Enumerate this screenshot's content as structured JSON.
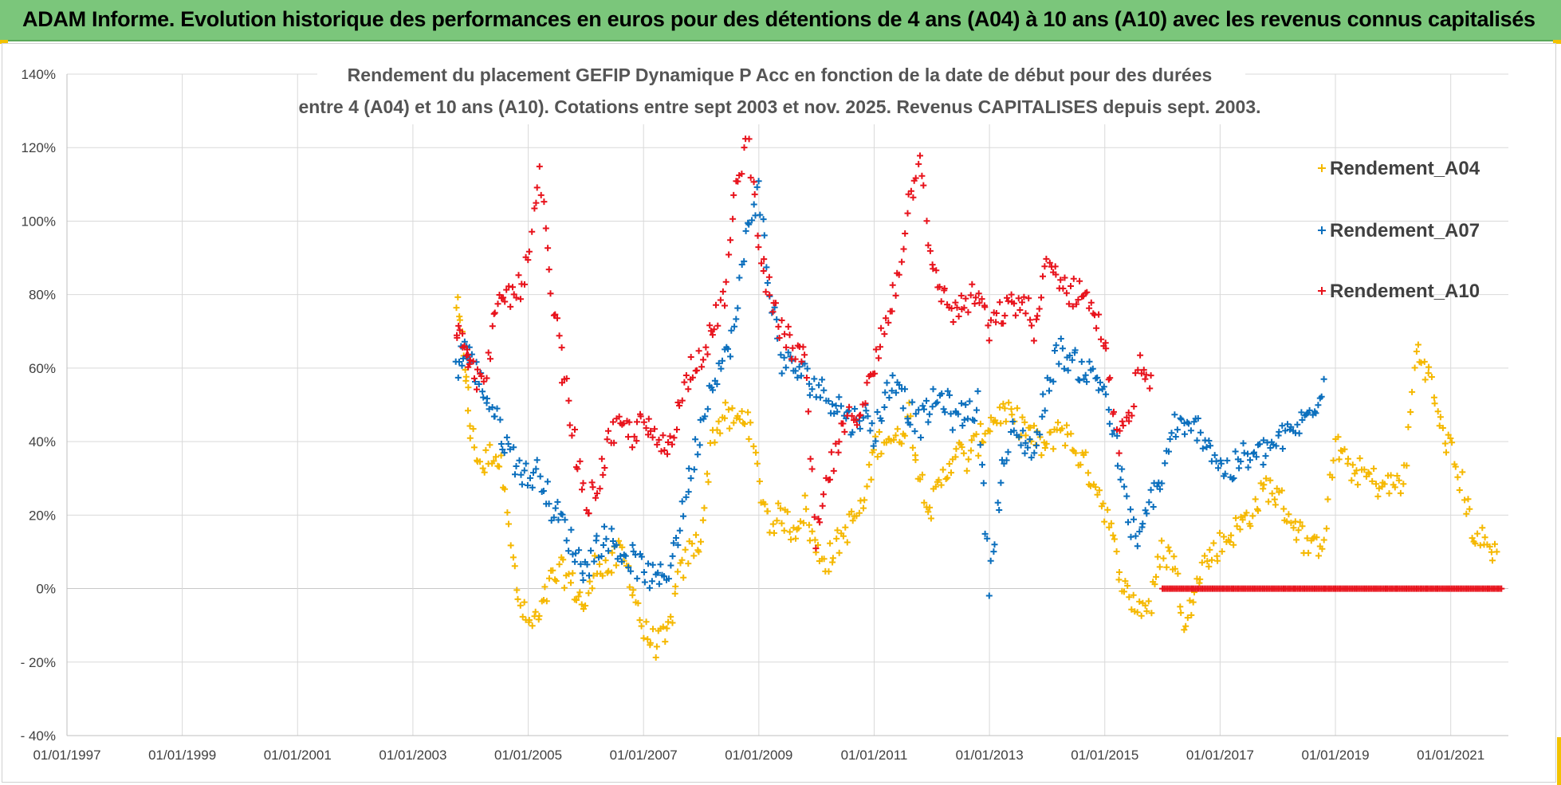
{
  "header": {
    "title": "ADAM Informe. Evolution historique des performances en euros pour des détentions de 4 ans (A04) à 10 ans (A10) avec les revenus connus capitalisés"
  },
  "colors": {
    "banner": "#7bc67b",
    "A04": "#f5b800",
    "A07": "#0b6fbd",
    "A10": "#e8131c",
    "grid": "#d9d9d9"
  },
  "chart_data": {
    "type": "scatter",
    "title_lines": [
      "Rendement du placement GEFIP Dynamique P Acc en fonction de la date de début pour des durées",
      "entre 4 (A04) et 10 ans (A10).  Cotations entre sept 2003 et nov. 2025. Revenus CAPITALISES depuis sept. 2003."
    ],
    "xlabel": "",
    "ylabel": "",
    "x_range": [
      "1997-01-01",
      "2022-01-01"
    ],
    "x_ticks": [
      "01/01/1997",
      "01/01/1999",
      "01/01/2001",
      "01/01/2003",
      "01/01/2005",
      "01/01/2007",
      "01/01/2009",
      "01/01/2011",
      "01/01/2013",
      "01/01/2015",
      "01/01/2017",
      "01/01/2019",
      "01/01/2021"
    ],
    "x_tick_years": [
      1997,
      1999,
      2001,
      2003,
      2005,
      2007,
      2009,
      2011,
      2013,
      2015,
      2017,
      2019,
      2021
    ],
    "ylim": [
      -40,
      140
    ],
    "y_ticks": [
      140,
      120,
      100,
      80,
      60,
      40,
      20,
      0,
      -20,
      -40
    ],
    "y_tick_labels": [
      "140%",
      "120%",
      "100%",
      "80%",
      "60%",
      "40%",
      "20%",
      "0%",
      "- 20%",
      "- 40%"
    ],
    "grid": true,
    "marker": "+",
    "legend_position": "top-right",
    "series": [
      {
        "name": "Rendement_A04",
        "color": "#f5b800",
        "x": [
          2003.75,
          2003.9,
          2004.0,
          2004.2,
          2004.4,
          2004.6,
          2004.8,
          2005.0,
          2005.2,
          2005.4,
          2005.6,
          2005.8,
          2006.0,
          2006.2,
          2006.4,
          2006.6,
          2006.8,
          2007.0,
          2007.2,
          2007.4,
          2007.6,
          2007.8,
          2008.0,
          2008.2,
          2008.4,
          2008.6,
          2008.8,
          2009.0,
          2009.2,
          2009.4,
          2009.6,
          2009.8,
          2010.0,
          2010.2,
          2010.4,
          2010.6,
          2010.8,
          2011.0,
          2011.2,
          2011.4,
          2011.6,
          2011.8,
          2012.0,
          2012.2,
          2012.4,
          2012.6,
          2012.8,
          2013.0,
          2013.2,
          2013.4,
          2013.6,
          2013.8,
          2014.0,
          2014.2,
          2014.4,
          2014.6,
          2014.8,
          2015.0,
          2015.2,
          2015.4,
          2015.6,
          2015.8,
          2016.0,
          2016.2,
          2016.4,
          2016.6,
          2016.8,
          2017.0,
          2017.2,
          2017.4,
          2017.6,
          2017.8,
          2018.0,
          2018.2,
          2018.4,
          2018.6,
          2018.8,
          2019.0,
          2019.2,
          2019.4,
          2019.6,
          2019.8,
          2020.0,
          2020.2,
          2020.4,
          2020.6,
          2020.8,
          2021.0,
          2021.2,
          2021.4,
          2021.6,
          2021.8
        ],
        "values": [
          78,
          62,
          42,
          33,
          38,
          30,
          -2,
          -10,
          -8,
          2,
          5,
          0,
          -5,
          8,
          5,
          10,
          2,
          -12,
          -15,
          -14,
          2,
          10,
          14,
          42,
          47,
          45,
          48,
          28,
          18,
          20,
          16,
          22,
          10,
          8,
          13,
          18,
          22,
          38,
          42,
          40,
          48,
          30,
          22,
          30,
          38,
          35,
          40,
          45,
          48,
          46,
          44,
          40,
          38,
          45,
          40,
          35,
          30,
          22,
          8,
          -2,
          -5,
          -4,
          10,
          8,
          -12,
          5,
          8,
          12,
          15,
          18,
          22,
          28,
          25,
          20,
          15,
          10,
          15,
          40,
          33,
          32,
          30,
          28,
          28,
          30,
          65,
          60,
          45,
          38,
          28,
          15,
          12,
          10
        ]
      },
      {
        "name": "Rendement_A07",
        "color": "#0b6fbd",
        "x": [
          2003.75,
          2003.9,
          2004.0,
          2004.2,
          2004.4,
          2004.6,
          2004.8,
          2005.0,
          2005.2,
          2005.4,
          2005.6,
          2005.8,
          2006.0,
          2006.2,
          2006.4,
          2006.6,
          2006.8,
          2007.0,
          2007.2,
          2007.4,
          2007.6,
          2007.8,
          2008.0,
          2008.2,
          2008.4,
          2008.6,
          2008.8,
          2009.0,
          2009.2,
          2009.4,
          2009.6,
          2009.8,
          2010.0,
          2010.2,
          2010.4,
          2010.6,
          2010.8,
          2011.0,
          2011.2,
          2011.4,
          2011.6,
          2011.8,
          2012.0,
          2012.2,
          2012.4,
          2012.6,
          2012.8,
          2013.0,
          2013.2,
          2013.4,
          2013.6,
          2013.8,
          2014.0,
          2014.2,
          2014.4,
          2014.6,
          2014.8,
          2015.0,
          2015.2,
          2015.4,
          2015.6,
          2015.8,
          2016.0,
          2016.2,
          2016.4,
          2016.6,
          2016.8,
          2017.0,
          2017.2,
          2017.4,
          2017.6,
          2017.8,
          2018.0,
          2018.2,
          2018.4,
          2018.6,
          2018.8
        ],
        "values": [
          60,
          66,
          62,
          55,
          48,
          40,
          34,
          30,
          32,
          22,
          18,
          10,
          5,
          12,
          14,
          10,
          8,
          5,
          2,
          4,
          15,
          30,
          45,
          58,
          62,
          72,
          100,
          108,
          80,
          62,
          60,
          58,
          55,
          52,
          50,
          45,
          48,
          42,
          52,
          58,
          48,
          45,
          50,
          52,
          46,
          48,
          50,
          2,
          30,
          42,
          40,
          38,
          55,
          65,
          62,
          60,
          58,
          55,
          38,
          20,
          12,
          25,
          30,
          45,
          42,
          44,
          40,
          33,
          32,
          36,
          35,
          38,
          40,
          42,
          45,
          48,
          57
        ]
      },
      {
        "name": "Rendement_A10",
        "color": "#e8131c",
        "x": [
          2003.75,
          2003.9,
          2004.0,
          2004.2,
          2004.4,
          2004.6,
          2004.8,
          2005.0,
          2005.2,
          2005.4,
          2005.6,
          2005.8,
          2006.0,
          2006.2,
          2006.4,
          2006.6,
          2006.8,
          2007.0,
          2007.2,
          2007.4,
          2007.6,
          2007.8,
          2008.0,
          2008.2,
          2008.4,
          2008.6,
          2008.8,
          2009.0,
          2009.2,
          2009.4,
          2009.6,
          2009.8,
          2010.0,
          2010.2,
          2010.4,
          2010.6,
          2010.8,
          2011.0,
          2011.2,
          2011.4,
          2011.6,
          2011.8,
          2012.0,
          2012.2,
          2012.4,
          2012.6,
          2012.8,
          2013.0,
          2013.2,
          2013.4,
          2013.6,
          2013.8,
          2014.0,
          2014.2,
          2014.4,
          2014.6,
          2014.8,
          2015.0,
          2015.2,
          2015.4,
          2015.6,
          2015.8
        ],
        "values": [
          72,
          68,
          60,
          55,
          72,
          80,
          80,
          88,
          112,
          80,
          60,
          40,
          22,
          28,
          40,
          44,
          42,
          45,
          40,
          38,
          48,
          60,
          64,
          70,
          80,
          108,
          125,
          95,
          78,
          70,
          65,
          62,
          12,
          30,
          40,
          47,
          50,
          60,
          72,
          85,
          105,
          120,
          85,
          80,
          75,
          78,
          80,
          70,
          75,
          77,
          78,
          70,
          88,
          85,
          80,
          82,
          75,
          68,
          40,
          45,
          60,
          58
        ],
        "flat_zero_from": 2016.0,
        "flat_zero_to": 2021.9,
        "flat_zero_value": 0
      }
    ]
  }
}
